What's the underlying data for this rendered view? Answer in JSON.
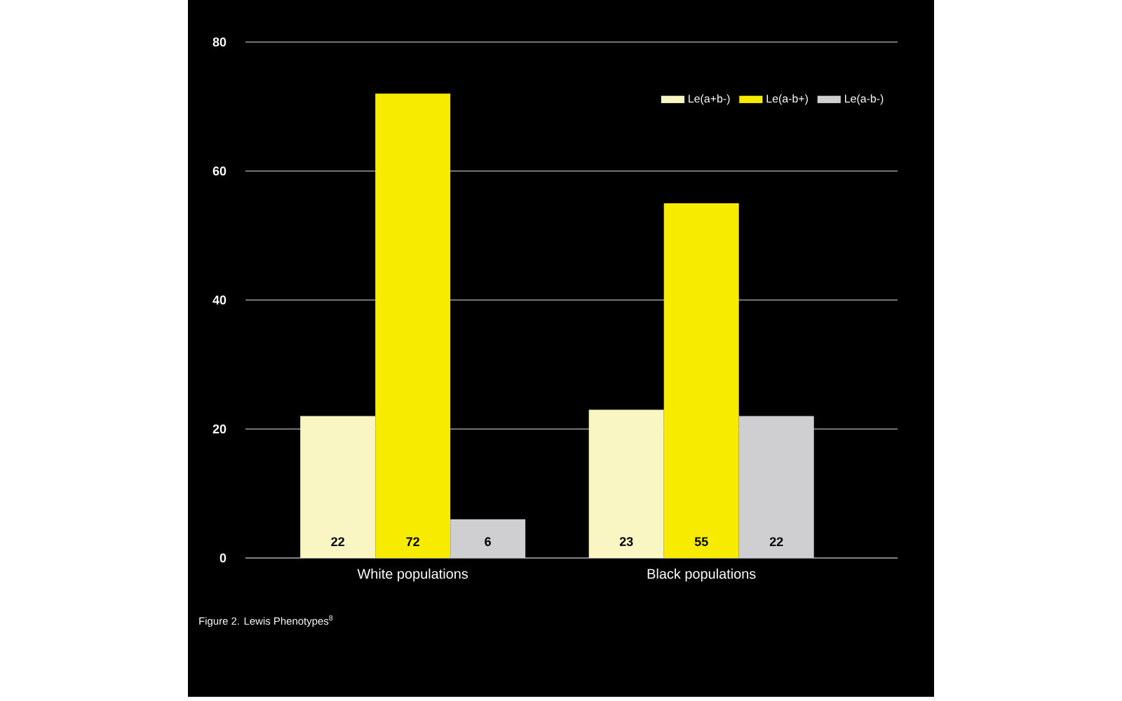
{
  "chart_data": {
    "type": "bar",
    "categories": [
      "White populations",
      "Black populations"
    ],
    "series": [
      {
        "name": "Le(a+b-)",
        "color": "#faf6c4",
        "values": [
          22,
          23
        ]
      },
      {
        "name": "Le(a-b+)",
        "color": "#f7eb00",
        "values": [
          72,
          55
        ]
      },
      {
        "name": "Le(a-b-)",
        "color": "#cfcfd1",
        "values": [
          6,
          22
        ]
      }
    ],
    "ylim": [
      0,
      80
    ],
    "yticks": [
      0,
      20,
      40,
      60,
      80
    ],
    "grid": "y",
    "legend": "top right",
    "data_labels": true,
    "annotations": [
      "Figure 2. Lewis Phenotypes$^{8}$"
    ]
  }
}
